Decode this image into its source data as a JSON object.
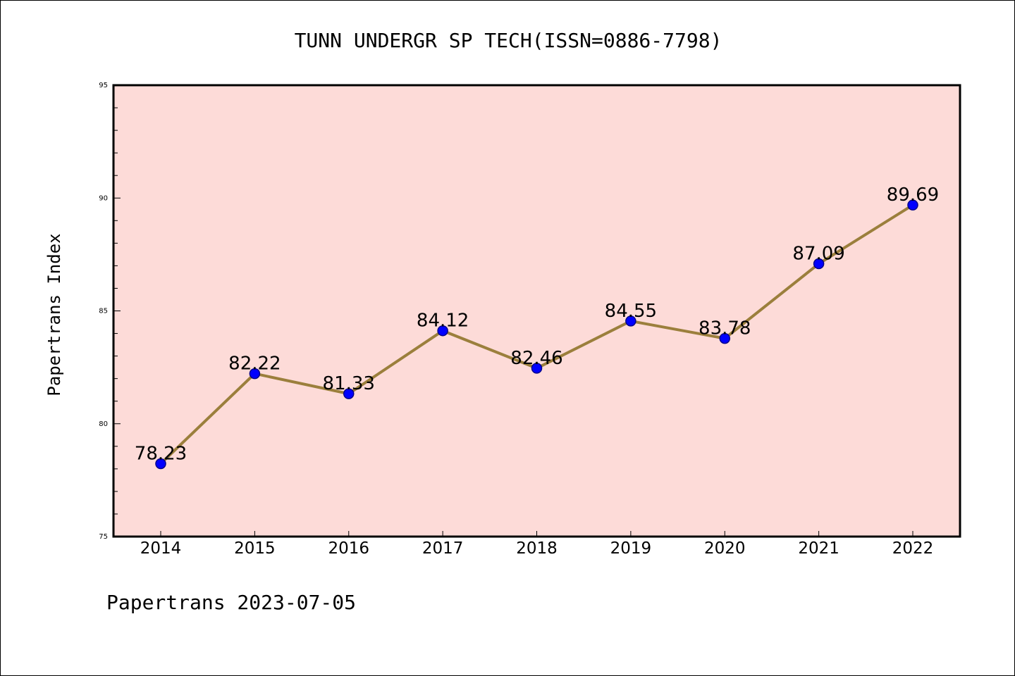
{
  "footer": "Papertrans 2023-07-05",
  "chart_data": {
    "type": "line",
    "title": "TUNN UNDERGR SP TECH(ISSN=0886-7798)",
    "xlabel": "",
    "ylabel": "Papertrans Index",
    "categories": [
      "2014",
      "2015",
      "2016",
      "2017",
      "2018",
      "2019",
      "2020",
      "2021",
      "2022"
    ],
    "series": [
      {
        "values": [
          78.23,
          82.22,
          81.33,
          84.12,
          82.46,
          84.55,
          83.78,
          87.09,
          89.69
        ]
      }
    ],
    "data_labels": [
      "78.23",
      "82.22",
      "81.33",
      "84.12",
      "82.46",
      "84.55",
      "83.78",
      "87.09",
      "89.69"
    ],
    "ylim": [
      75,
      95
    ],
    "yticks": [
      "75",
      "80",
      "85",
      "90",
      "95"
    ],
    "grid": false,
    "colors": {
      "plot_background": "#fddbd8",
      "line": "#9b7f3c",
      "marker": "#0000ff",
      "marker_edge": "#00008b"
    }
  }
}
